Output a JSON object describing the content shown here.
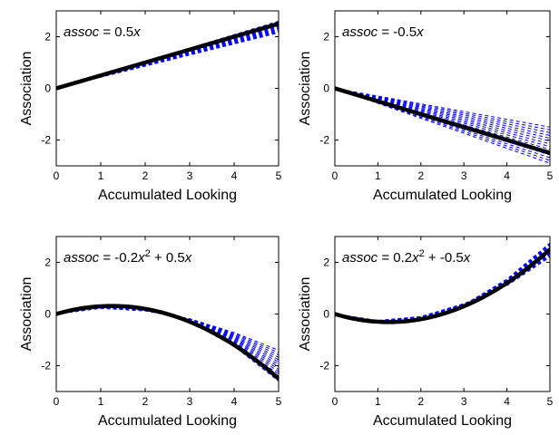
{
  "chart_data": [
    {
      "type": "line",
      "annotation": {
        "var": "assoc",
        "text": " = 0.5",
        "tail_var": "x"
      },
      "coefficients": {
        "a": 0,
        "b": 0.5
      },
      "xlabel": "Accumulated Looking",
      "ylabel": "Association",
      "xlim": [
        0,
        5
      ],
      "ylim": [
        -3,
        3
      ],
      "xticks": [
        "0",
        "1",
        "2",
        "3",
        "4",
        "5"
      ],
      "yticks": [
        "-2",
        "0",
        "2"
      ],
      "x": [
        0,
        1,
        2,
        3,
        4,
        5
      ],
      "series": [
        {
          "values": [
            0,
            0.5,
            1.0,
            1.5,
            2.0,
            2.5
          ],
          "color": "#000000",
          "style": "solid-thick"
        },
        {
          "values": [
            0,
            0.43,
            0.86,
            1.29,
            1.72,
            2.15
          ],
          "color": "#0000ff",
          "style": "dashed",
          "role": "estimate-spread-min"
        },
        {
          "values": [
            0,
            0.52,
            1.04,
            1.56,
            2.08,
            2.6
          ],
          "color": "#0000ff",
          "style": "dashed",
          "role": "estimate-spread-max"
        }
      ],
      "grid": false,
      "legend": "none"
    },
    {
      "type": "line",
      "annotation": {
        "var": "assoc",
        "text": " = -0.5",
        "tail_var": "x"
      },
      "coefficients": {
        "a": 0,
        "b": -0.5
      },
      "xlabel": "Accumulated Looking",
      "ylabel": "Association",
      "xlim": [
        0,
        5
      ],
      "ylim": [
        -3,
        3
      ],
      "xticks": [
        "0",
        "1",
        "2",
        "3",
        "4",
        "5"
      ],
      "yticks": [
        "-2",
        "0",
        "2"
      ],
      "x": [
        0,
        1,
        2,
        3,
        4,
        5
      ],
      "series": [
        {
          "values": [
            0,
            -0.5,
            -1.0,
            -1.5,
            -2.0,
            -2.5
          ],
          "color": "#000000",
          "style": "solid-thick"
        },
        {
          "values": [
            0,
            -0.3,
            -0.6,
            -0.9,
            -1.2,
            -1.5
          ],
          "color": "#0000ff",
          "style": "dashed",
          "role": "estimate-spread-min"
        },
        {
          "values": [
            0,
            -0.58,
            -1.16,
            -1.74,
            -2.32,
            -2.9
          ],
          "color": "#0000ff",
          "style": "dashed",
          "role": "estimate-spread-max"
        }
      ],
      "grid": false,
      "legend": "none"
    },
    {
      "type": "line",
      "annotation": {
        "var": "assoc",
        "text": " = -0.2",
        "sq_var": "x",
        "sq_exp": "2",
        "mid": " + 0.5",
        "tail_var": "x"
      },
      "coefficients": {
        "a": -0.2,
        "b": 0.5
      },
      "xlabel": "Accumulated Looking",
      "ylabel": "Association",
      "xlim": [
        0,
        5
      ],
      "ylim": [
        -3,
        3
      ],
      "xticks": [
        "0",
        "1",
        "2",
        "3",
        "4",
        "5"
      ],
      "yticks": [
        "-2",
        "0",
        "2"
      ],
      "x": [
        0,
        1,
        2,
        3,
        4,
        5
      ],
      "series": [
        {
          "values": [
            0,
            0.3,
            0.2,
            -0.3,
            -1.2,
            -2.5
          ],
          "color": "#000000",
          "style": "solid-thick"
        },
        {
          "values": [
            0,
            0.22,
            0.12,
            -0.18,
            -0.72,
            -1.4
          ],
          "color": "#0000ff",
          "style": "dashed",
          "role": "estimate-spread-min"
        },
        {
          "values": [
            0,
            0.3,
            0.2,
            -0.3,
            -1.25,
            -2.6
          ],
          "color": "#0000ff",
          "style": "dashed",
          "role": "estimate-spread-max"
        }
      ],
      "grid": false,
      "legend": "none"
    },
    {
      "type": "line",
      "annotation": {
        "var": "assoc",
        "text": " = 0.2",
        "sq_var": "x",
        "sq_exp": "2",
        "mid": " + -0.5",
        "tail_var": "x"
      },
      "coefficients": {
        "a": 0.2,
        "b": -0.5
      },
      "xlabel": "Accumulated Looking",
      "ylabel": "Association",
      "xlim": [
        0,
        5
      ],
      "ylim": [
        -3,
        3
      ],
      "xticks": [
        "0",
        "1",
        "2",
        "3",
        "4",
        "5"
      ],
      "yticks": [
        "-2",
        "0",
        "2"
      ],
      "x": [
        0,
        1,
        2,
        3,
        4,
        5
      ],
      "series": [
        {
          "values": [
            0,
            -0.3,
            -0.2,
            0.3,
            1.2,
            2.5
          ],
          "color": "#000000",
          "style": "solid-thick"
        },
        {
          "values": [
            0,
            -0.3,
            -0.15,
            0.35,
            1.35,
            2.75
          ],
          "color": "#0000ff",
          "style": "dashed",
          "role": "estimate-spread-max"
        },
        {
          "values": [
            0,
            -0.25,
            -0.1,
            0.4,
            1.1,
            2.2
          ],
          "color": "#0000ff",
          "style": "dashed",
          "role": "estimate-spread-min"
        }
      ],
      "grid": false,
      "legend": "none"
    }
  ]
}
